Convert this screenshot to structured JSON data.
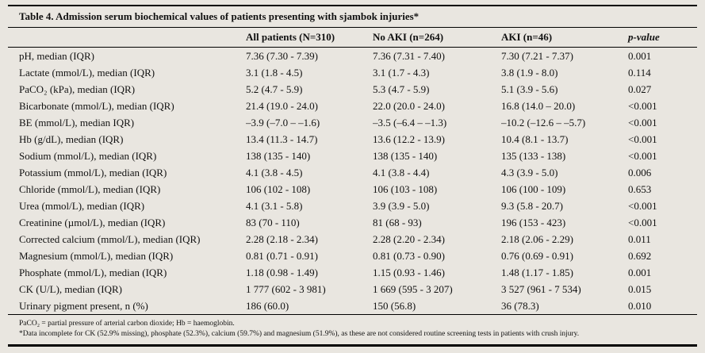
{
  "title": "Table 4. Admission serum biochemical values of patients presenting with sjambok injuries*",
  "table": {
    "columns": [
      "",
      "All patients (N=310)",
      "No AKI (n=264)",
      "AKI (n=46)",
      "p-value"
    ],
    "rows": [
      [
        "pH, median (IQR)",
        "7.36 (7.30 - 7.39)",
        "7.36 (7.31 - 7.40)",
        "7.30 (7.21 - 7.37)",
        "0.001"
      ],
      [
        "Lactate (mmol/L), median (IQR)",
        "3.1 (1.8 - 4.5)",
        "3.1 (1.7 - 4.3)",
        "3.8 (1.9 - 8.0)",
        "0.114"
      ],
      [
        "PaCO₂ (kPa), median (IQR)",
        "5.2 (4.7 - 5.9)",
        "5.3 (4.7 - 5.9)",
        "5.1 (3.9 - 5.6)",
        "0.027"
      ],
      [
        "Bicarbonate (mmol/L), median (IQR)",
        "21.4 (19.0 - 24.0)",
        "22.0 (20.0 - 24.0)",
        "16.8 (14.0 – 20.0)",
        "<0.001"
      ],
      [
        "BE (mmol/L), median IQR)",
        "–3.9 (–7.0 – –1.6)",
        "–3.5 (–6.4 – –1.3)",
        "–10.2 (–12.6 – –5.7)",
        "<0.001"
      ],
      [
        "Hb (g/dL), median (IQR)",
        "13.4 (11.3 - 14.7)",
        "13.6 (12.2 - 13.9)",
        "10.4 (8.1 - 13.7)",
        "<0.001"
      ],
      [
        "Sodium (mmol/L), median (IQR)",
        "138 (135 - 140)",
        "138 (135 - 140)",
        "135 (133 - 138)",
        "<0.001"
      ],
      [
        "Potassium (mmol/L), median (IQR)",
        "4.1 (3.8 - 4.5)",
        "4.1 (3.8 - 4.4)",
        "4.3 (3.9 - 5.0)",
        "0.006"
      ],
      [
        "Chloride (mmol/L), median (IQR)",
        "106 (102 - 108)",
        "106 (103 - 108)",
        "106 (100 - 109)",
        "0.653"
      ],
      [
        "Urea (mmol/L), median (IQR)",
        "4.1 (3.1 - 5.8)",
        "3.9 (3.9 - 5.0)",
        "9.3 (5.8 - 20.7)",
        "<0.001"
      ],
      [
        "Creatinine (µmol/L), median (IQR)",
        "83 (70 - 110)",
        "81 (68 - 93)",
        "196 (153 - 423)",
        "<0.001"
      ],
      [
        "Corrected calcium (mmol/L), median (IQR)",
        "2.28 (2.18 - 2.34)",
        "2.28 (2.20 - 2.34)",
        "2.18 (2.06 - 2.29)",
        "0.011"
      ],
      [
        "Magnesium (mmol/L), median (IQR)",
        "0.81 (0.71 - 0.91)",
        "0.81 (0.73 - 0.90)",
        "0.76 (0.69 - 0.91)",
        "0.692"
      ],
      [
        "Phosphate (mmol/L), median (IQR)",
        "1.18 (0.98 - 1.49)",
        "1.15 (0.93 - 1.46)",
        "1.48 (1.17 - 1.85)",
        "0.001"
      ],
      [
        "CK (U/L), median (IQR)",
        "1 777 (602 - 3 981)",
        "1 669 (595 - 3 207)",
        "3 527 (961 - 7 534)",
        "0.015"
      ],
      [
        "Urinary pigment present, n (%)",
        "186 (60.0)",
        "150 (56.8)",
        "36 (78.3)",
        "0.010"
      ]
    ]
  },
  "footnotes": [
    "PaCO₂ = partial pressure of arterial carbon dioxide; Hb = haemoglobin.",
    "*Data incomplete for CK (52.9% missing), phosphate (52.3%), calcium (59.7%) and magnesium (51.9%), as these are not considered routine screening tests in patients with crush injury."
  ]
}
